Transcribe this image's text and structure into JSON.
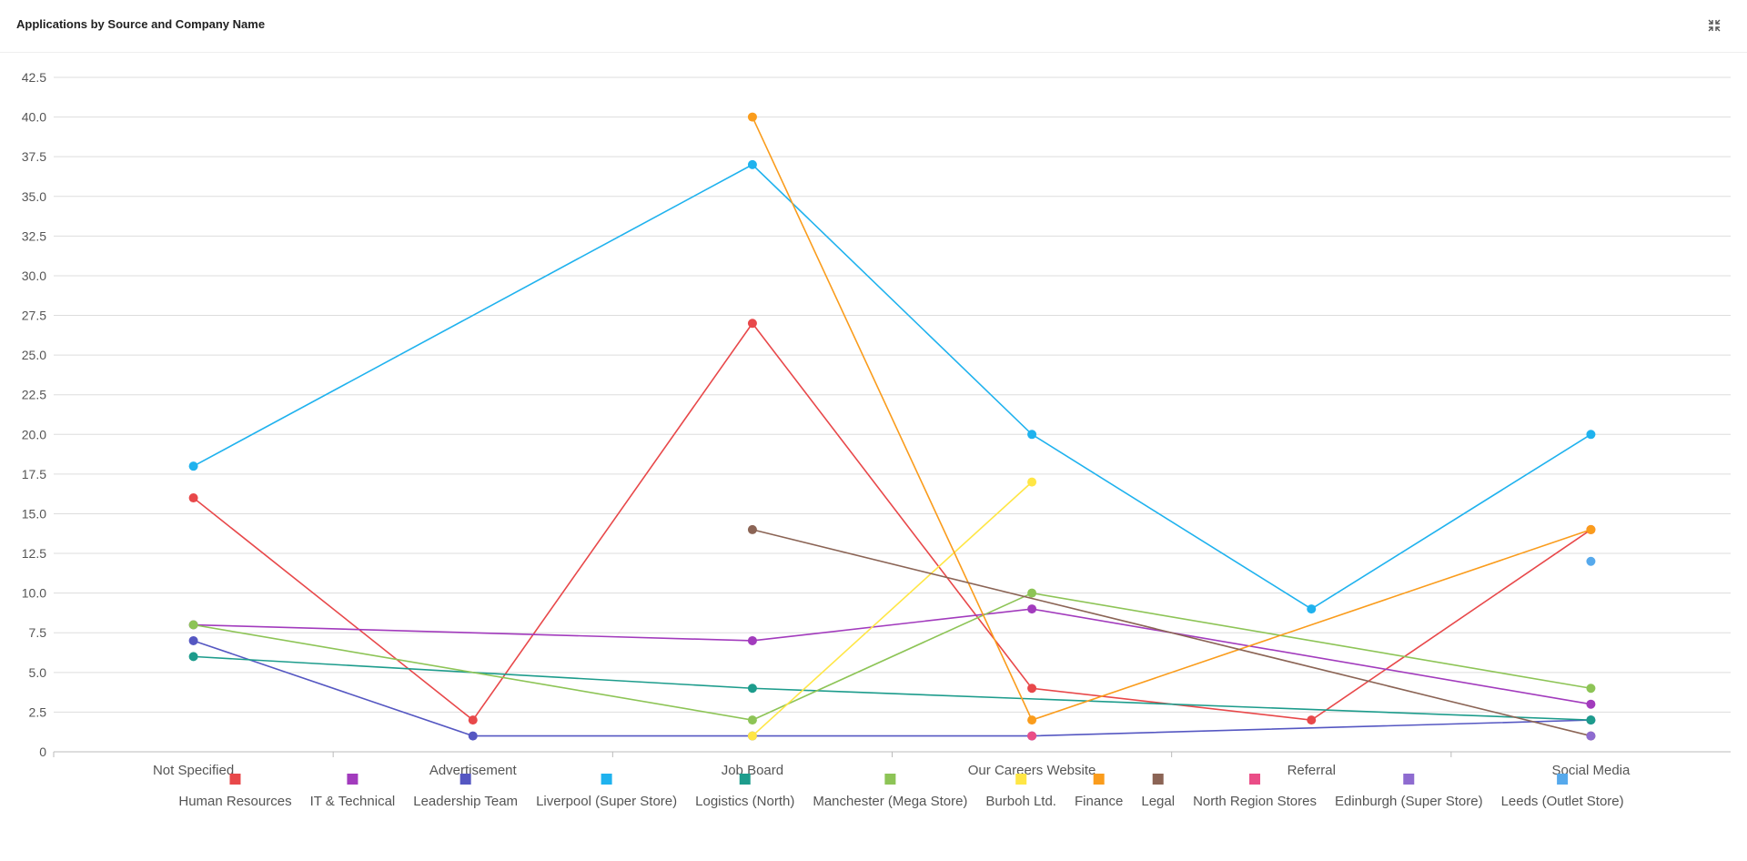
{
  "header": {
    "title": "Applications by Source and Company Name",
    "collapse_icon": "collapse-icon"
  },
  "chart_data": {
    "type": "line",
    "categories": [
      "Not Specified",
      "Advertisement",
      "Job Board",
      "Our Careers Website",
      "Referral",
      "Social Media"
    ],
    "ylim": [
      0,
      42.5
    ],
    "yticks": [
      "0",
      "2.5",
      "5.0",
      "7.5",
      "10.0",
      "12.5",
      "15.0",
      "17.5",
      "20.0",
      "22.5",
      "25.0",
      "27.5",
      "30.0",
      "32.5",
      "35.0",
      "37.5",
      "40.0",
      "42.5"
    ],
    "grid": true,
    "legend_position": "bottom",
    "series": [
      {
        "name": "Human Resources",
        "color": "#e8484a",
        "values": [
          16,
          2,
          27,
          4,
          2,
          14
        ]
      },
      {
        "name": "IT & Technical",
        "color": "#a23bbd",
        "values": [
          8,
          null,
          7,
          9,
          null,
          3
        ]
      },
      {
        "name": "Leadership Team",
        "color": "#5557c2",
        "values": [
          7,
          1,
          1,
          1,
          null,
          2
        ]
      },
      {
        "name": "Liverpool (Super Store)",
        "color": "#1fb2ee",
        "values": [
          18,
          null,
          37,
          20,
          9,
          20
        ]
      },
      {
        "name": "Logistics (North)",
        "color": "#1d9c8c",
        "values": [
          6,
          null,
          4,
          null,
          null,
          2
        ]
      },
      {
        "name": "Manchester (Mega Store)",
        "color": "#8dc456",
        "values": [
          8,
          null,
          2,
          10,
          null,
          4
        ]
      },
      {
        "name": "Burboh Ltd.",
        "color": "#ffe645",
        "values": [
          null,
          null,
          1,
          17,
          null,
          null
        ]
      },
      {
        "name": "Finance",
        "color": "#fa9c1c",
        "values": [
          null,
          null,
          40,
          2,
          null,
          14
        ]
      },
      {
        "name": "Legal",
        "color": "#8b6455",
        "values": [
          null,
          null,
          14,
          null,
          null,
          1
        ]
      },
      {
        "name": "North Region Stores",
        "color": "#ea4d87",
        "values": [
          null,
          null,
          null,
          1,
          null,
          null
        ]
      },
      {
        "name": "Edinburgh (Super Store)",
        "color": "#8e6bd0",
        "values": [
          null,
          null,
          null,
          null,
          null,
          1
        ]
      },
      {
        "name": "Leeds (Outlet Store)",
        "color": "#56a9ec",
        "values": [
          null,
          null,
          null,
          null,
          null,
          12
        ]
      }
    ]
  }
}
